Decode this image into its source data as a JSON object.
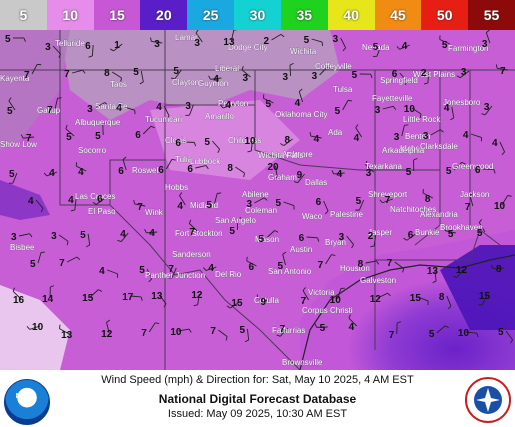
{
  "legend": {
    "labels": [
      "5",
      "10",
      "15",
      "20",
      "25",
      "30",
      "35",
      "40",
      "45",
      "50",
      "55"
    ],
    "colors": [
      "#c9c9c9",
      "#e68cea",
      "#c857d6",
      "#5a1ec8",
      "#1aa8e0",
      "#14d2d2",
      "#1ed21e",
      "#e6e61a",
      "#f08c14",
      "#e61e14",
      "#8c0a0a"
    ]
  },
  "map": {
    "cities": [
      "Telluride",
      "Lamar",
      "Dodge City",
      "Wichita",
      "Nevada",
      "Farmington",
      "Kayenta",
      "Liberal",
      "Coffeyville",
      "Springfield",
      "West Plains",
      "Taos",
      "Guymon",
      "Tulsa",
      "Jonesboro",
      "Clayton",
      "Perryton",
      "Fayetteville",
      "Gallup",
      "Santa Fe",
      "Amarillo",
      "Oklahoma City",
      "Little Rock",
      "Albuquerque",
      "Tucumcari",
      "Ada",
      "Benton",
      "Show Low",
      "Clovis",
      "Childress",
      "Idabel",
      "Clarksdale",
      "Socorro",
      "Tulia",
      "Ardmore",
      "Arkadelphia",
      "Greenwood",
      "Roswell",
      "Lubbock",
      "Wichita Falls",
      "Texarkana",
      "Dallas",
      "Shreveport",
      "Jackson",
      "Hobbs",
      "Abilene",
      "Graham",
      "Natchitoches",
      "Las Cruces",
      "Midland",
      "Wink",
      "Coleman",
      "Waco",
      "Palestine",
      "Alexandria",
      "Brookhaven",
      "El Paso",
      "Fort Stockton",
      "San Angelo",
      "Jasper",
      "Bunkie",
      "Bisbee",
      "Sanderson",
      "Mason",
      "Bryan",
      "Austin",
      "Panther Junction",
      "Del Rio",
      "Houston",
      "Galveston",
      "San Antonio",
      "Victoria",
      "Cotulla",
      "Corpus Christi",
      "Falfurrias",
      "Brownsville"
    ],
    "wind_speeds": [
      "5",
      "3",
      "6",
      "1",
      "3",
      "3",
      "13",
      "2",
      "5",
      "3",
      "5",
      "4",
      "5",
      "3",
      "7",
      "7",
      "8",
      "5",
      "5",
      "4",
      "3",
      "3",
      "3",
      "5",
      "6",
      "2",
      "3",
      "7",
      "5",
      "7",
      "3",
      "4",
      "4",
      "3",
      "4",
      "5",
      "4",
      "5",
      "3",
      "10",
      "4",
      "3",
      "7",
      "5",
      "5",
      "6",
      "6",
      "5",
      "10",
      "8",
      "4",
      "4",
      "3",
      "3",
      "4",
      "4",
      "5",
      "4",
      "4",
      "6",
      "6",
      "6",
      "8",
      "20",
      "9",
      "4",
      "3",
      "5",
      "5",
      "6",
      "4",
      "4",
      "6",
      "7",
      "4",
      "5",
      "3",
      "5",
      "6",
      "5",
      "7",
      "8",
      "7",
      "10",
      "3",
      "3",
      "5",
      "4",
      "4",
      "7",
      "5",
      "5",
      "6",
      "3",
      "2",
      "6",
      "5",
      "5",
      "5",
      "7",
      "4",
      "5",
      "7",
      "4",
      "6",
      "5",
      "7",
      "8",
      "7",
      "13",
      "12",
      "8",
      "16",
      "14",
      "15",
      "17",
      "13",
      "12",
      "15",
      "9",
      "7",
      "10",
      "12",
      "15",
      "8",
      "15",
      "10",
      "13",
      "12",
      "7",
      "10",
      "7",
      "5",
      "7",
      "5",
      "4",
      "7",
      "5",
      "10",
      "5"
    ]
  },
  "footer": {
    "line1": "Wind Speed (mph) & Direction for: Sat, May 10 2025, 4 AM EST",
    "line2": "National Digital Forecast Database",
    "line3": "Issued: May 09 2025, 10:30 AM EST",
    "noaa_logo_text": "NOAA",
    "noaa_icon": "noaa-logo",
    "nws_icon": "nws-logo"
  }
}
